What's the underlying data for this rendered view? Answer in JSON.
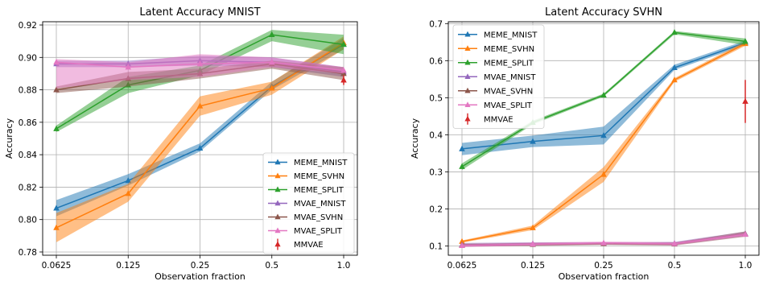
{
  "chart_data": [
    {
      "type": "line",
      "title": "Latent Accuracy MNIST",
      "xlabel": "Observation fraction",
      "ylabel": "Accuracy",
      "x_ticks": [
        "0.0625",
        "0.125",
        "0.25",
        "0.5",
        "1.0"
      ],
      "ylim": [
        0.778,
        0.922
      ],
      "y_ticks": [
        "0.78",
        "0.80",
        "0.82",
        "0.84",
        "0.86",
        "0.88",
        "0.90",
        "0.92"
      ],
      "y_tick_values": [
        0.78,
        0.8,
        0.82,
        0.84,
        0.86,
        0.88,
        0.9,
        0.92
      ],
      "grid": true,
      "legend_position": "lower-right",
      "series": [
        {
          "name": "MEME_MNIST",
          "color": "#1f77b4",
          "values": [
            0.807,
            0.824,
            0.844,
            0.882,
            0.908
          ],
          "lower": [
            0.802,
            0.821,
            0.842,
            0.88,
            0.905
          ],
          "upper": [
            0.812,
            0.828,
            0.847,
            0.885,
            0.912
          ]
        },
        {
          "name": "MEME_SVHN",
          "color": "#ff7f0e",
          "values": [
            0.795,
            0.816,
            0.87,
            0.881,
            0.909
          ],
          "lower": [
            0.786,
            0.811,
            0.864,
            0.877,
            0.905
          ],
          "upper": [
            0.804,
            0.822,
            0.876,
            0.885,
            0.913
          ]
        },
        {
          "name": "MEME_SPLIT",
          "color": "#2ca02c",
          "values": [
            0.856,
            0.883,
            0.892,
            0.914,
            0.908
          ],
          "lower": [
            0.854,
            0.878,
            0.889,
            0.91,
            0.902
          ],
          "upper": [
            0.858,
            0.888,
            0.895,
            0.917,
            0.914
          ]
        },
        {
          "name": "MVAE_MNIST",
          "color": "#9467bd",
          "values": [
            0.896,
            0.896,
            0.898,
            0.897,
            0.891
          ],
          "lower": [
            0.894,
            0.894,
            0.895,
            0.894,
            0.888
          ],
          "upper": [
            0.898,
            0.898,
            0.901,
            0.9,
            0.894
          ]
        },
        {
          "name": "MVAE_SVHN",
          "color": "#8c564b",
          "values": [
            0.88,
            0.887,
            0.89,
            0.896,
            0.89
          ],
          "lower": [
            0.878,
            0.882,
            0.887,
            0.893,
            0.886
          ],
          "upper": [
            0.882,
            0.891,
            0.893,
            0.898,
            0.894
          ]
        },
        {
          "name": "MVAE_SPLIT",
          "color": "#e377c2",
          "values": [
            0.897,
            0.894,
            0.896,
            0.897,
            0.892
          ],
          "lower": [
            0.881,
            0.886,
            0.888,
            0.894,
            0.89
          ],
          "upper": [
            0.899,
            0.897,
            0.902,
            0.9,
            0.894
          ]
        },
        {
          "name": "MMVAE",
          "color": "#d62728",
          "values": [
            null,
            null,
            null,
            null,
            0.886
          ],
          "error": [
            null,
            null,
            null,
            null,
            0.003
          ]
        }
      ]
    },
    {
      "type": "line",
      "title": "Latent Accuracy SVHN",
      "xlabel": "Observation fraction",
      "ylabel": "Accuracy",
      "x_ticks": [
        "0.0625",
        "0.125",
        "0.25",
        "0.5",
        "1.0"
      ],
      "ylim": [
        0.075,
        0.705
      ],
      "y_ticks": [
        "0.1",
        "0.2",
        "0.3",
        "0.4",
        "0.5",
        "0.6",
        "0.7"
      ],
      "y_tick_values": [
        0.1,
        0.2,
        0.3,
        0.4,
        0.5,
        0.6,
        0.7
      ],
      "grid": true,
      "legend_position": "upper-left",
      "series": [
        {
          "name": "MEME_MNIST",
          "color": "#1f77b4",
          "values": [
            0.362,
            0.382,
            0.398,
            0.581,
            0.648
          ],
          "lower": [
            0.345,
            0.367,
            0.374,
            0.575,
            0.642
          ],
          "upper": [
            0.378,
            0.398,
            0.422,
            0.589,
            0.654
          ]
        },
        {
          "name": "MEME_SVHN",
          "color": "#ff7f0e",
          "values": [
            0.112,
            0.149,
            0.293,
            0.548,
            0.646
          ],
          "lower": [
            0.109,
            0.143,
            0.273,
            0.543,
            0.64
          ],
          "upper": [
            0.115,
            0.155,
            0.313,
            0.553,
            0.652
          ]
        },
        {
          "name": "MEME_SPLIT",
          "color": "#2ca02c",
          "values": [
            0.314,
            0.433,
            0.507,
            0.676,
            0.652
          ],
          "lower": [
            0.305,
            0.428,
            0.503,
            0.671,
            0.642
          ],
          "upper": [
            0.323,
            0.438,
            0.511,
            0.68,
            0.66
          ]
        },
        {
          "name": "MVAE_MNIST",
          "color": "#9467bd",
          "values": [
            0.103,
            0.106,
            0.107,
            0.107,
            0.133
          ],
          "lower": [
            0.098,
            0.102,
            0.104,
            0.103,
            0.127
          ],
          "upper": [
            0.108,
            0.11,
            0.11,
            0.111,
            0.139
          ]
        },
        {
          "name": "MVAE_SVHN",
          "color": "#8c564b",
          "values": [
            0.102,
            0.104,
            0.106,
            0.105,
            0.132
          ],
          "lower": [
            0.098,
            0.1,
            0.103,
            0.101,
            0.125
          ],
          "upper": [
            0.106,
            0.108,
            0.109,
            0.109,
            0.139
          ]
        },
        {
          "name": "MVAE_SPLIT",
          "color": "#e377c2",
          "values": [
            0.101,
            0.105,
            0.108,
            0.106,
            0.131
          ],
          "lower": [
            0.097,
            0.101,
            0.104,
            0.102,
            0.126
          ],
          "upper": [
            0.105,
            0.109,
            0.112,
            0.11,
            0.136
          ]
        },
        {
          "name": "MMVAE",
          "color": "#d62728",
          "values": [
            null,
            null,
            null,
            null,
            0.49
          ],
          "error": [
            null,
            null,
            null,
            null,
            0.058
          ]
        }
      ]
    }
  ]
}
